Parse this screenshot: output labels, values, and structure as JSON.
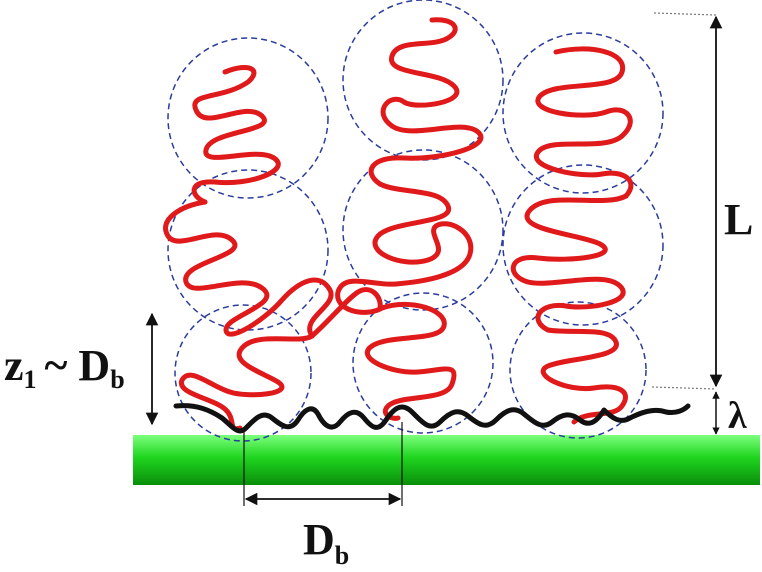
{
  "labels": {
    "brush_height": "L",
    "anchor_layer": "λ",
    "z_label": "z",
    "z_subscript": "1",
    "z_relation": "~ D",
    "z_relation_subscript": "b",
    "blob_size": "D",
    "blob_size_subscript": "b"
  },
  "colors": {
    "chain": "#e0191b",
    "anchor_layer": "#111111",
    "blob_outline": "#2a3c9c",
    "substrate_light": "#7dff7d",
    "substrate_mid": "#1fd51f",
    "substrate_dark": "#0a8e0a",
    "annotation": "#111111"
  }
}
